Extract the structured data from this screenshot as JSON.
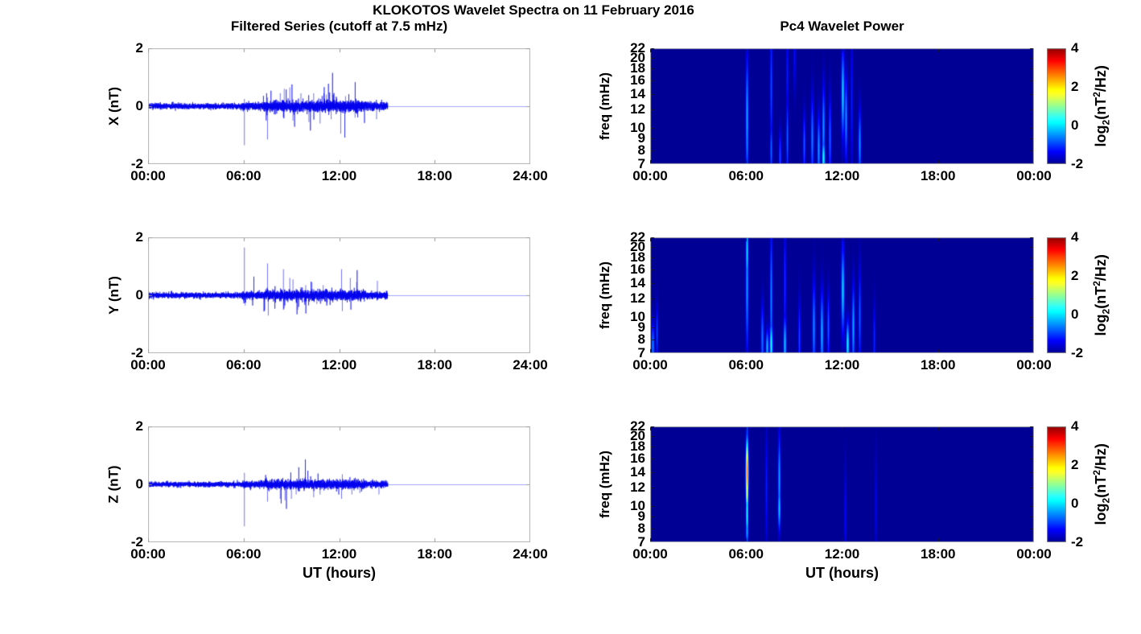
{
  "figure": {
    "title": "KLOKOTOS Wavelet Spectra on 11 February 2016",
    "left_column_title": "Filtered Series (cutoff at 7.5 mHz)",
    "right_column_title": "Pc4 Wavelet Power",
    "xlabel": "UT (hours)",
    "colors": {
      "background": "#ffffff",
      "line": "#0000ee",
      "flat_line": "rgba(90,90,255,0.55)",
      "axes_border": "#b3b3b3",
      "tick": "#999999",
      "spectro_tick": "#1a1a1a",
      "text": "#000000"
    }
  },
  "colorbar": {
    "colormap": "jet",
    "range": [
      -2,
      4
    ],
    "tick_values": [
      4,
      2,
      0,
      -2
    ],
    "tick_labels": [
      "4",
      "2",
      "0",
      "-2"
    ],
    "label": {
      "pre": "log",
      "sub": "2",
      "mid": "(nT",
      "sup": "2",
      "post": "/Hz)"
    }
  },
  "chart_data": [
    {
      "id": "x-filtered",
      "type": "line",
      "ylabel": "X (nT)",
      "ylim": [
        -2,
        2
      ],
      "ytick_values": [
        2,
        0,
        -2
      ],
      "ytick_labels": [
        "2",
        "0",
        "-2"
      ],
      "xlim": [
        0,
        24
      ],
      "xtick_values": [
        0,
        6,
        12,
        18,
        24
      ],
      "xtick_labels": [
        "00:00",
        "06:00",
        "12:00",
        "18:00",
        "24:00"
      ],
      "signal": {
        "baseline": 0,
        "start": 0,
        "end": 15.05,
        "seed": 11,
        "flat_value": 0,
        "noise_segments": [
          {
            "t0": 0,
            "t1": 5.9,
            "a": 0.045
          },
          {
            "t0": 5.9,
            "t1": 7.3,
            "a": 0.065
          },
          {
            "t0": 7.3,
            "t1": 13.6,
            "a": 0.095
          },
          {
            "t0": 13.6,
            "t1": 15.05,
            "a": 0.065
          }
        ],
        "burst": {
          "t0": 7.2,
          "t1": 13.6,
          "prob": 0.03,
          "gain": 4
        },
        "spikes": [
          {
            "t": 6.05,
            "v": -1.35
          },
          {
            "t": 6.05,
            "v": 0.25
          },
          {
            "t": 7.5,
            "v": -1.15
          },
          {
            "t": 7.5,
            "v": 0.3
          },
          {
            "t": 8.3,
            "v": 0.45
          },
          {
            "t": 8.55,
            "v": 0.6
          },
          {
            "t": 8.9,
            "v": 0.65
          },
          {
            "t": 9.1,
            "v": -0.5
          },
          {
            "t": 9.6,
            "v": 0.45
          },
          {
            "t": 10.1,
            "v": -0.55
          },
          {
            "t": 10.4,
            "v": 0.45
          },
          {
            "t": 10.8,
            "v": -0.6
          },
          {
            "t": 11.2,
            "v": 0.4
          },
          {
            "t": 11.5,
            "v": -0.45
          },
          {
            "t": 12.1,
            "v": -0.95
          },
          {
            "t": 12.4,
            "v": 0.35
          },
          {
            "t": 13.0,
            "v": -0.4
          },
          {
            "t": 14.35,
            "v": -0.45
          }
        ]
      }
    },
    {
      "id": "x-wavelet",
      "type": "heatmap",
      "ylabel": "freq (mHz)",
      "yscale": "log",
      "ylim": [
        7,
        22
      ],
      "ytick_values": [
        22,
        20,
        18,
        16,
        14,
        12,
        10,
        9,
        8,
        7
      ],
      "ytick_labels": [
        "22",
        "20",
        "18",
        "16",
        "14",
        "12",
        "10",
        "9",
        "8",
        "7"
      ],
      "xlim": [
        0,
        24
      ],
      "xtick_values": [
        0,
        6,
        12,
        18,
        24
      ],
      "xtick_labels": [
        "00:00",
        "06:00",
        "12:00",
        "18:00",
        "00:00"
      ],
      "clim": [
        -2,
        4
      ],
      "background_value": -2,
      "colormap": "jet",
      "events": [
        {
          "t": 6.05,
          "f": 11,
          "s": 0.45,
          "p": -0.35,
          "w": 1.2
        },
        {
          "t": 6.05,
          "f": 8.5,
          "s": 0.18,
          "p": -0.5,
          "w": 1.0
        },
        {
          "t": 7.55,
          "f": 15,
          "s": 0.45,
          "p": -0.9,
          "w": 1.1
        },
        {
          "t": 7.55,
          "f": 8,
          "s": 0.2,
          "p": -0.7,
          "w": 1.0
        },
        {
          "t": 8.1,
          "f": 7.5,
          "s": 0.18,
          "p": -0.8,
          "w": 1.0
        },
        {
          "t": 8.55,
          "f": 9,
          "s": 0.28,
          "p": -0.75,
          "w": 1.0
        },
        {
          "t": 8.55,
          "f": 17,
          "s": 0.3,
          "p": -1.2,
          "w": 1.0
        },
        {
          "t": 9.0,
          "f": 20,
          "s": 0.25,
          "p": -1.3,
          "w": 1.0
        },
        {
          "t": 9.6,
          "f": 8.5,
          "s": 0.22,
          "p": -0.7,
          "w": 1.0
        },
        {
          "t": 10.1,
          "f": 9,
          "s": 0.3,
          "p": -0.55,
          "w": 1.2
        },
        {
          "t": 10.5,
          "f": 8,
          "s": 0.25,
          "p": -0.4,
          "w": 1.2
        },
        {
          "t": 10.8,
          "f": 7.4,
          "s": 0.13,
          "p": 0.3,
          "w": 1.3
        },
        {
          "t": 10.8,
          "f": 10,
          "s": 0.3,
          "p": -0.4,
          "w": 1.2
        },
        {
          "t": 11.2,
          "f": 9,
          "s": 0.3,
          "p": -0.65,
          "w": 1.0
        },
        {
          "t": 12.0,
          "f": 14,
          "s": 0.3,
          "p": 0.0,
          "w": 1.3
        },
        {
          "t": 12.0,
          "f": 18,
          "s": 0.3,
          "p": -1.0,
          "w": 1.1
        },
        {
          "t": 12.25,
          "f": 11,
          "s": 0.3,
          "p": -0.4,
          "w": 1.1
        },
        {
          "t": 12.6,
          "f": 13,
          "s": 0.5,
          "p": -1.2,
          "w": 1.0
        },
        {
          "t": 13.1,
          "f": 8.5,
          "s": 0.25,
          "p": -0.5,
          "w": 1.2
        }
      ]
    },
    {
      "id": "y-filtered",
      "type": "line",
      "ylabel": "Y (nT)",
      "ylim": [
        -2,
        2
      ],
      "ytick_values": [
        2,
        0,
        -2
      ],
      "ytick_labels": [
        "2",
        "0",
        "-2"
      ],
      "xlim": [
        0,
        24
      ],
      "xtick_values": [
        0,
        6,
        12,
        18,
        24
      ],
      "xtick_labels": [
        "00:00",
        "06:00",
        "12:00",
        "18:00",
        "24:00"
      ],
      "signal": {
        "baseline": 0,
        "start": 0,
        "end": 15.05,
        "seed": 22,
        "flat_value": 0,
        "noise_segments": [
          {
            "t0": 0,
            "t1": 5.9,
            "a": 0.045
          },
          {
            "t0": 5.9,
            "t1": 7.3,
            "a": 0.06
          },
          {
            "t0": 7.3,
            "t1": 13.6,
            "a": 0.085
          },
          {
            "t0": 13.6,
            "t1": 15.05,
            "a": 0.06
          }
        ],
        "burst": {
          "t0": 5.9,
          "t1": 13.6,
          "prob": 0.025,
          "gain": 4
        },
        "spikes": [
          {
            "t": 6.05,
            "v": 1.65
          },
          {
            "t": 6.1,
            "v": -0.35
          },
          {
            "t": 7.5,
            "v": 1.1
          },
          {
            "t": 7.55,
            "v": -0.7
          },
          {
            "t": 8.5,
            "v": 0.9
          },
          {
            "t": 8.55,
            "v": -0.45
          },
          {
            "t": 8.9,
            "v": 0.6
          },
          {
            "t": 9.1,
            "v": 0.55
          },
          {
            "t": 9.4,
            "v": -0.5
          },
          {
            "t": 9.9,
            "v": 0.35
          },
          {
            "t": 10.3,
            "v": 0.45
          },
          {
            "t": 10.6,
            "v": -0.3
          },
          {
            "t": 11.0,
            "v": 0.35
          },
          {
            "t": 12.15,
            "v": 0.9
          },
          {
            "t": 12.2,
            "v": -0.55
          },
          {
            "t": 12.7,
            "v": 0.6
          },
          {
            "t": 13.1,
            "v": 0.45
          },
          {
            "t": 14.4,
            "v": 0.5
          }
        ]
      }
    },
    {
      "id": "y-wavelet",
      "type": "heatmap",
      "ylabel": "freq (mHz)",
      "yscale": "log",
      "ylim": [
        7,
        22
      ],
      "ytick_values": [
        22,
        20,
        18,
        16,
        14,
        12,
        10,
        9,
        8,
        7
      ],
      "ytick_labels": [
        "22",
        "20",
        "18",
        "16",
        "14",
        "12",
        "10",
        "9",
        "8",
        "7"
      ],
      "xlim": [
        0,
        24
      ],
      "xtick_values": [
        0,
        6,
        12,
        18,
        24
      ],
      "xtick_labels": [
        "00:00",
        "06:00",
        "12:00",
        "18:00",
        "00:00"
      ],
      "clim": [
        -2,
        4
      ],
      "background_value": -2,
      "colormap": "jet",
      "events": [
        {
          "t": 0.15,
          "f": 7.5,
          "s": 0.16,
          "p": -0.5,
          "w": 1.2
        },
        {
          "t": 0.4,
          "f": 8.5,
          "s": 0.2,
          "p": -0.9,
          "w": 1.0
        },
        {
          "t": 6.04,
          "f": 14,
          "s": 0.5,
          "p": -0.4,
          "w": 1.2
        },
        {
          "t": 6.04,
          "f": 19,
          "s": 0.25,
          "p": 0.0,
          "w": 1.1
        },
        {
          "t": 7.0,
          "f": 8,
          "s": 0.25,
          "p": -0.6,
          "w": 1.2
        },
        {
          "t": 7.3,
          "f": 7.4,
          "s": 0.12,
          "p": -0.2,
          "w": 1.2
        },
        {
          "t": 7.55,
          "f": 12,
          "s": 0.5,
          "p": -0.55,
          "w": 1.1
        },
        {
          "t": 7.55,
          "f": 7.6,
          "s": 0.16,
          "p": 0.3,
          "w": 1.3
        },
        {
          "t": 8.4,
          "f": 14,
          "s": 0.4,
          "p": -1.0,
          "w": 1.0
        },
        {
          "t": 8.4,
          "f": 7.6,
          "s": 0.2,
          "p": -0.1,
          "w": 1.2
        },
        {
          "t": 9.3,
          "f": 8,
          "s": 0.28,
          "p": -0.85,
          "w": 1.0
        },
        {
          "t": 10.2,
          "f": 9,
          "s": 0.33,
          "p": -0.5,
          "w": 1.3
        },
        {
          "t": 10.7,
          "f": 8.5,
          "s": 0.3,
          "p": -0.25,
          "w": 1.3
        },
        {
          "t": 11.1,
          "f": 9,
          "s": 0.25,
          "p": -0.7,
          "w": 1.0
        },
        {
          "t": 12.05,
          "f": 13,
          "s": 0.3,
          "p": -0.05,
          "w": 1.4
        },
        {
          "t": 12.05,
          "f": 19,
          "s": 0.3,
          "p": -1.2,
          "w": 1.1
        },
        {
          "t": 12.35,
          "f": 7.6,
          "s": 0.16,
          "p": 0.2,
          "w": 1.3
        },
        {
          "t": 12.7,
          "f": 9,
          "s": 0.3,
          "p": -0.35,
          "w": 1.2
        },
        {
          "t": 13.1,
          "f": 10,
          "s": 0.35,
          "p": -0.8,
          "w": 1.1
        },
        {
          "t": 14.0,
          "f": 8,
          "s": 0.25,
          "p": -1.1,
          "w": 1.0
        }
      ]
    },
    {
      "id": "z-filtered",
      "type": "line",
      "ylabel": "Z (nT)",
      "ylim": [
        -2,
        2
      ],
      "ytick_values": [
        2,
        0,
        -2
      ],
      "ytick_labels": [
        "2",
        "0",
        "-2"
      ],
      "xlim": [
        0,
        24
      ],
      "xtick_values": [
        0,
        6,
        12,
        18,
        24
      ],
      "xtick_labels": [
        "00:00",
        "06:00",
        "12:00",
        "18:00",
        "24:00"
      ],
      "signal": {
        "baseline": 0,
        "start": 0,
        "end": 15.05,
        "seed": 33,
        "flat_value": 0,
        "noise_segments": [
          {
            "t0": 0,
            "t1": 5.9,
            "a": 0.04
          },
          {
            "t0": 5.9,
            "t1": 7.3,
            "a": 0.055
          },
          {
            "t0": 7.3,
            "t1": 13.6,
            "a": 0.075
          },
          {
            "t0": 13.6,
            "t1": 15.05,
            "a": 0.055
          }
        ],
        "burst": {
          "t0": 5.9,
          "t1": 13.6,
          "prob": 0.02,
          "gain": 3.5
        },
        "spikes": [
          {
            "t": 6.05,
            "v": -1.45
          },
          {
            "t": 6.05,
            "v": 0.4
          },
          {
            "t": 7.5,
            "v": -0.6
          },
          {
            "t": 8.3,
            "v": -0.5
          },
          {
            "t": 8.6,
            "v": -0.55
          },
          {
            "t": 9.0,
            "v": -0.5
          },
          {
            "t": 9.3,
            "v": -0.35
          },
          {
            "t": 10.4,
            "v": -0.45
          },
          {
            "t": 10.8,
            "v": -0.35
          },
          {
            "t": 12.15,
            "v": -0.5
          },
          {
            "t": 12.2,
            "v": 0.35
          },
          {
            "t": 12.8,
            "v": -0.35
          },
          {
            "t": 13.3,
            "v": -0.3
          },
          {
            "t": 14.5,
            "v": -0.35
          }
        ]
      }
    },
    {
      "id": "z-wavelet",
      "type": "heatmap",
      "ylabel": "freq (mHz)",
      "yscale": "log",
      "ylim": [
        7,
        22
      ],
      "ytick_values": [
        22,
        20,
        18,
        16,
        14,
        12,
        10,
        9,
        8,
        7
      ],
      "ytick_labels": [
        "22",
        "20",
        "18",
        "16",
        "14",
        "12",
        "10",
        "9",
        "8",
        "7"
      ],
      "xlim": [
        0,
        24
      ],
      "xtick_values": [
        0,
        6,
        12,
        18,
        24
      ],
      "xtick_labels": [
        "00:00",
        "06:00",
        "12:00",
        "18:00",
        "00:00"
      ],
      "clim": [
        -2,
        4
      ],
      "background_value": -2,
      "colormap": "jet",
      "events": [
        {
          "t": 6.03,
          "f": 14,
          "s": 0.22,
          "p": 2.8,
          "w": 1.1
        },
        {
          "t": 6.03,
          "f": 11.5,
          "s": 0.12,
          "p": 1.6,
          "w": 1.0
        },
        {
          "t": 6.03,
          "f": 9.3,
          "s": 0.18,
          "p": 0.4,
          "w": 1.0
        },
        {
          "t": 6.03,
          "f": 7.8,
          "s": 0.1,
          "p": -0.3,
          "w": 1.1
        },
        {
          "t": 6.03,
          "f": 19,
          "s": 0.25,
          "p": -0.8,
          "w": 1.0
        },
        {
          "t": 7.25,
          "f": 12,
          "s": 0.4,
          "p": -1.2,
          "w": 1.0
        },
        {
          "t": 8.05,
          "f": 13,
          "s": 0.32,
          "p": -0.35,
          "w": 1.1
        },
        {
          "t": 8.05,
          "f": 9.8,
          "s": 0.16,
          "p": -0.1,
          "w": 1.1
        },
        {
          "t": 12.2,
          "f": 9,
          "s": 0.35,
          "p": -1.35,
          "w": 1.0
        },
        {
          "t": 14.1,
          "f": 10,
          "s": 0.35,
          "p": -1.45,
          "w": 1.0
        }
      ]
    }
  ]
}
